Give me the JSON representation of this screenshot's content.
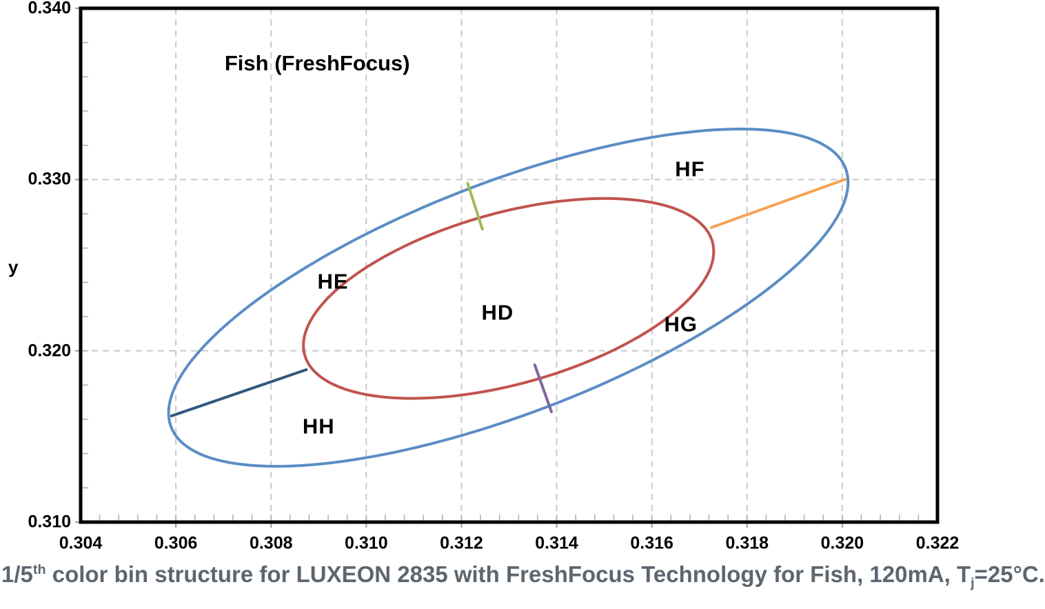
{
  "colors": {
    "caption_text": "#5d666f",
    "axis_text": "#000000",
    "plot_border": "#000000",
    "grid": "#c9c9c9",
    "minor_tick": "#b3b3b3",
    "outside_tick": "#9a9a9a",
    "outer_ellipse": "#5B8DC5",
    "inner_ellipse": "#C1534F"
  },
  "caption": {
    "prefix": "1/5",
    "sup": "th",
    "middle": " color bin structure for LUXEON 2835 with FreshFocus Technology for Fish, 120mA, T",
    "sub": "j",
    "suffix": "=25°C."
  },
  "chart_data": {
    "type": "ellipse-bin-diagram",
    "title": "Fish (FreshFocus)",
    "title_pos": {
      "x": 0.30897,
      "y": 0.33678
    },
    "xlabel": "",
    "ylabel": "y",
    "xlim": [
      0.304,
      0.322
    ],
    "ylim": [
      0.31,
      0.34
    ],
    "x_tick_labels": [
      "0.304",
      "0.306",
      "0.308",
      "0.310",
      "0.312",
      "0.314",
      "0.316",
      "0.318",
      "0.320",
      "0.322"
    ],
    "y_tick_labels": [
      "0.310",
      "0.320",
      "0.330",
      "0.340"
    ],
    "x_minor_step": 0.0004,
    "y_minor_step": 0.002,
    "grid_dashed": true,
    "legend": "none",
    "ellipses": [
      {
        "name": "outer-bin-boundary",
        "color": "#5B8DC5",
        "cx": 0.312985,
        "cy": 0.323105,
        "semi_major": 0.011278,
        "semi_minor": 0.00455,
        "rotation_deg": 57.8
      },
      {
        "name": "inner-bin-boundary",
        "color": "#C1534F",
        "cx": 0.31299,
        "cy": 0.32306,
        "semi_major": 0.00636,
        "semi_minor": 0.00349,
        "rotation_deg": 61.6
      }
    ],
    "dividers": [
      {
        "name": "divider-green",
        "color": "#9FBB58",
        "x1": 0.31213,
        "y1": 0.32978,
        "x2": 0.31244,
        "y2": 0.3271
      },
      {
        "name": "divider-orange",
        "color": "#F7A254",
        "x1": 0.31725,
        "y1": 0.3272,
        "x2": 0.32006,
        "y2": 0.33001
      },
      {
        "name": "divider-purple",
        "color": "#8064A2",
        "x1": 0.31354,
        "y1": 0.31918,
        "x2": 0.31389,
        "y2": 0.31644
      },
      {
        "name": "divider-navy",
        "color": "#31587E",
        "x1": 0.30591,
        "y1": 0.3162,
        "x2": 0.30874,
        "y2": 0.3189
      }
    ],
    "bins": [
      {
        "label": "HD",
        "x": 0.31276,
        "y": 0.32224
      },
      {
        "label": "HE",
        "x": 0.3093,
        "y": 0.32405
      },
      {
        "label": "HF",
        "x": 0.3168,
        "y": 0.33062
      },
      {
        "label": "HG",
        "x": 0.31661,
        "y": 0.32156
      },
      {
        "label": "HH",
        "x": 0.309,
        "y": 0.3156
      }
    ]
  }
}
